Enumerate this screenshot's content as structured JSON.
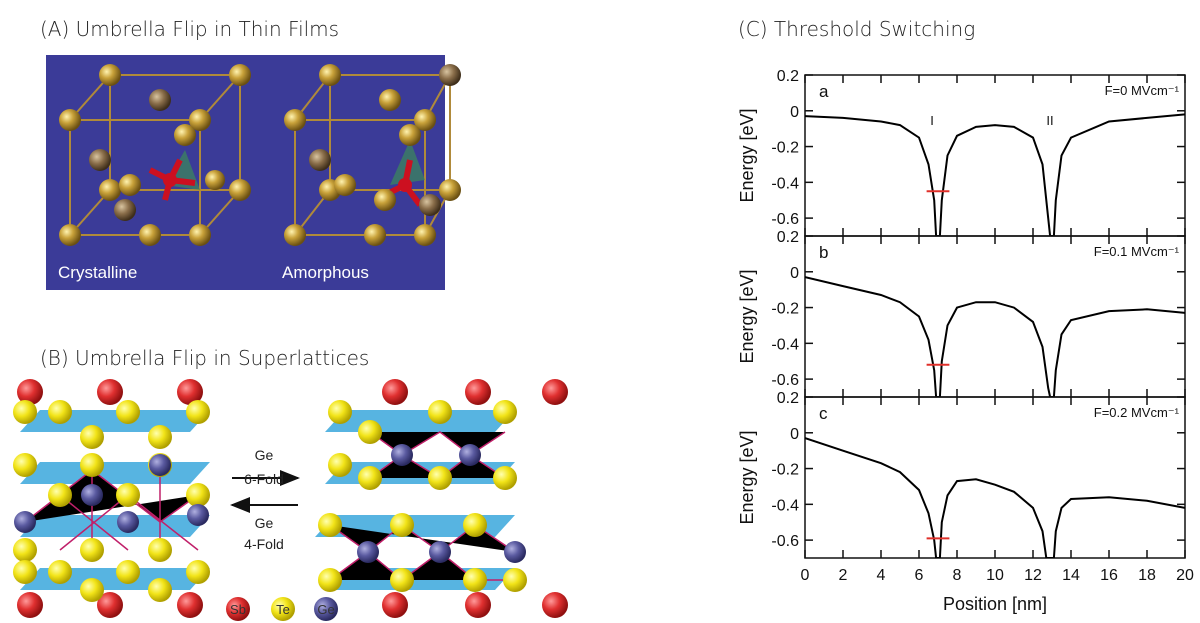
{
  "panel_a": {
    "title": "(A) Umbrella Flip in Thin Films",
    "labels": [
      "Crystalline",
      "Amorphous"
    ]
  },
  "panel_b": {
    "title": "(B) Umbrella Flip in Superlattices",
    "forward": [
      "Ge",
      "6-Fold"
    ],
    "backward": [
      "Ge",
      "4-Fold"
    ],
    "legend": [
      "Sb",
      "Te",
      "Ge"
    ]
  },
  "panel_c": {
    "title": "(C) Threshold Switching"
  },
  "chart_data": [
    {
      "type": "line",
      "label": "a",
      "field_label": "F=0 MVcm⁻¹",
      "well_labels": [
        "I",
        "II"
      ],
      "ylabel": "Energy [eV]",
      "x": [
        0,
        2,
        4,
        5,
        6,
        6.5,
        6.8,
        6.9,
        7.1,
        7.2,
        7.5,
        8,
        9,
        10,
        11,
        12,
        12.5,
        12.8,
        12.9,
        13.1,
        13.2,
        13.5,
        14,
        16,
        18,
        20
      ],
      "values": [
        -0.03,
        -0.04,
        -0.06,
        -0.08,
        -0.15,
        -0.3,
        -0.5,
        -0.7,
        -0.7,
        -0.5,
        -0.25,
        -0.14,
        -0.09,
        -0.08,
        -0.09,
        -0.15,
        -0.3,
        -0.6,
        -0.7,
        -0.7,
        -0.5,
        -0.25,
        -0.15,
        -0.06,
        -0.04,
        -0.02
      ],
      "color": "#000000",
      "level": -0.45,
      "level_x": [
        6.4,
        7.6
      ],
      "level_color": "#e0302a",
      "xlim": [
        0,
        20
      ],
      "ylim": [
        -0.7,
        0.2
      ],
      "xticks": [
        0,
        2,
        4,
        6,
        8,
        10,
        12,
        14,
        16,
        18,
        20
      ],
      "yticks": [
        -0.6,
        -0.4,
        -0.2,
        0,
        0.2
      ],
      "xtick_labels": false
    },
    {
      "type": "line",
      "label": "b",
      "field_label": "F=0.1 MVcm⁻¹",
      "ylabel": "Energy [eV]",
      "x": [
        0,
        2,
        4,
        5,
        6,
        6.5,
        6.8,
        6.9,
        7.1,
        7.2,
        7.5,
        8,
        9,
        10,
        11,
        12,
        12.5,
        12.8,
        12.9,
        13.1,
        13.2,
        13.5,
        14,
        16,
        18,
        20
      ],
      "values": [
        -0.03,
        -0.08,
        -0.13,
        -0.17,
        -0.25,
        -0.38,
        -0.55,
        -0.7,
        -0.7,
        -0.5,
        -0.3,
        -0.2,
        -0.17,
        -0.17,
        -0.2,
        -0.28,
        -0.42,
        -0.65,
        -0.7,
        -0.7,
        -0.55,
        -0.35,
        -0.27,
        -0.22,
        -0.21,
        -0.23
      ],
      "color": "#000000",
      "level": -0.52,
      "level_x": [
        6.4,
        7.6
      ],
      "level_color": "#e0302a",
      "xlim": [
        0,
        20
      ],
      "ylim": [
        -0.7,
        0.2
      ],
      "xticks": [
        0,
        2,
        4,
        6,
        8,
        10,
        12,
        14,
        16,
        18,
        20
      ],
      "yticks": [
        -0.6,
        -0.4,
        -0.2,
        0,
        0.2
      ],
      "xtick_labels": false
    },
    {
      "type": "line",
      "label": "c",
      "field_label": "F=0.2 MVcm⁻¹",
      "ylabel": "Energy [eV]",
      "xlabel": "Position [nm]",
      "x": [
        0,
        2,
        4,
        5,
        6,
        6.5,
        6.8,
        6.9,
        7.1,
        7.2,
        7.5,
        8,
        9,
        10,
        11,
        12,
        12.5,
        12.7,
        13.1,
        13.2,
        13.5,
        14,
        16,
        18,
        20
      ],
      "values": [
        -0.03,
        -0.1,
        -0.17,
        -0.22,
        -0.32,
        -0.45,
        -0.6,
        -0.7,
        -0.7,
        -0.5,
        -0.35,
        -0.27,
        -0.26,
        -0.29,
        -0.33,
        -0.42,
        -0.55,
        -0.7,
        -0.7,
        -0.55,
        -0.42,
        -0.37,
        -0.36,
        -0.38,
        -0.42
      ],
      "color": "#000000",
      "level": -0.59,
      "level_x": [
        6.4,
        7.6
      ],
      "level_color": "#e0302a",
      "xlim": [
        0,
        20
      ],
      "ylim": [
        -0.7,
        0.2
      ],
      "xticks": [
        0,
        2,
        4,
        6,
        8,
        10,
        12,
        14,
        16,
        18,
        20
      ],
      "yticks": [
        -0.6,
        -0.4,
        -0.2,
        0,
        0.2
      ],
      "xtick_labels": true
    }
  ]
}
